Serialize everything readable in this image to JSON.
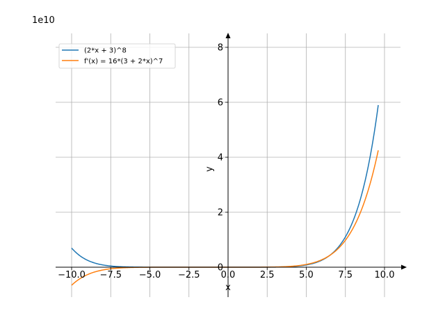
{
  "chart_data": {
    "type": "line",
    "title": "",
    "xlabel": "x",
    "ylabel": "y",
    "offset_label": "1e10",
    "y_multiplier": 10000000000,
    "xlim": [
      -11,
      11
    ],
    "ylim": [
      -1.1,
      8.5
    ],
    "grid": true,
    "legend_position": "top-left",
    "x_ticks": [
      -10.0,
      -7.5,
      -5.0,
      -2.5,
      0.0,
      2.5,
      5.0,
      7.5,
      10.0
    ],
    "x_tick_labels": [
      "−10.0",
      "−7.5",
      "−5.0",
      "−2.5",
      "0.0",
      "2.5",
      "5.0",
      "7.5",
      "10.0"
    ],
    "y_ticks": [
      0,
      2,
      4,
      6,
      8
    ],
    "y_tick_labels": [
      "0",
      "2",
      "4",
      "6",
      "8"
    ],
    "x_domain": [
      -10,
      9.6
    ],
    "series": [
      {
        "name": "(2*x + 3)^8",
        "color": "#1f77b4",
        "expression": "(2*x+3)^8"
      },
      {
        "name": "f'(x) = 16*(3 + 2*x)^7",
        "color": "#ff7f0e",
        "expression": "16*(3+2*x)^7"
      }
    ]
  }
}
